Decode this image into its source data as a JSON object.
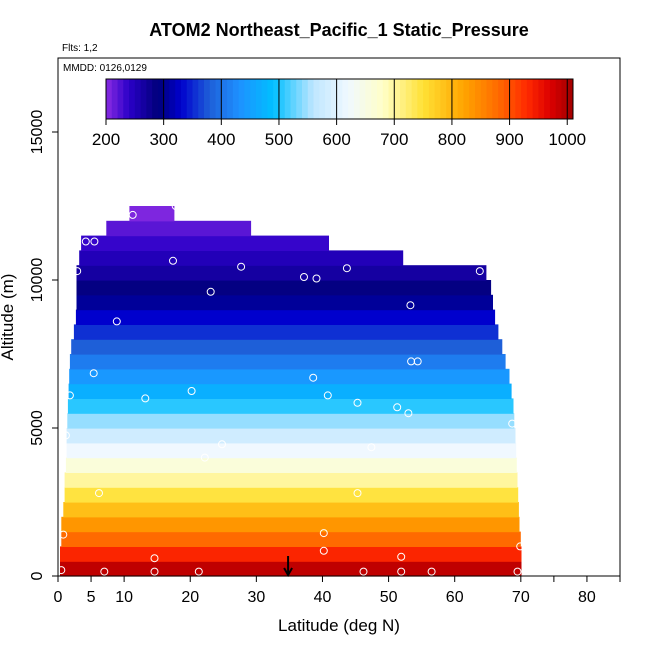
{
  "chart_data": {
    "type": "heatmap",
    "title": "ATOM2 Northeast_Pacific_1 Static_Pressure",
    "subtitle_flights": "Flts: 1,2",
    "subtitle_dates": "MMDD: 0126,0129",
    "xlabel": "Latitude (deg N)",
    "ylabel": "Altitude (m)",
    "xlim": [
      0,
      85
    ],
    "ylim": [
      0,
      17500
    ],
    "x_ticks": [
      0,
      5,
      10,
      20,
      30,
      40,
      50,
      60,
      70,
      80
    ],
    "x_ticks_unlabeled": [
      75,
      85
    ],
    "y_ticks": [
      0,
      5000,
      10000,
      15000
    ],
    "colorbar": {
      "min": 200,
      "max": 1010,
      "ticks": [
        200,
        300,
        400,
        500,
        600,
        700,
        800,
        900,
        1000
      ],
      "color_stops": [
        [
          200,
          "#8a2be2"
        ],
        [
          240,
          "#2a00c8"
        ],
        [
          290,
          "#00007a"
        ],
        [
          330,
          "#0000cd"
        ],
        [
          380,
          "#1e5fd8"
        ],
        [
          430,
          "#1e90ff"
        ],
        [
          490,
          "#00bfff"
        ],
        [
          560,
          "#bfe6ff"
        ],
        [
          620,
          "#f0f8ff"
        ],
        [
          680,
          "#ffffc8"
        ],
        [
          750,
          "#ffe135"
        ],
        [
          820,
          "#ffa500"
        ],
        [
          880,
          "#ff6a00"
        ],
        [
          930,
          "#ff2a00"
        ],
        [
          970,
          "#dd0000"
        ],
        [
          1010,
          "#a00000"
        ]
      ]
    },
    "altitude_bands": [
      {
        "alt": 250,
        "lat_min": 0.3,
        "lat_max": 70.1,
        "pressure": 990
      },
      {
        "alt": 750,
        "lat_min": 0.3,
        "lat_max": 70.1,
        "pressure": 935
      },
      {
        "alt": 1250,
        "lat_min": 0.5,
        "lat_max": 70.0,
        "pressure": 880
      },
      {
        "alt": 1750,
        "lat_min": 0.5,
        "lat_max": 69.8,
        "pressure": 835
      },
      {
        "alt": 2250,
        "lat_min": 0.8,
        "lat_max": 69.7,
        "pressure": 790
      },
      {
        "alt": 2750,
        "lat_min": 1.0,
        "lat_max": 69.6,
        "pressure": 745
      },
      {
        "alt": 3250,
        "lat_min": 1.0,
        "lat_max": 69.5,
        "pressure": 700
      },
      {
        "alt": 3750,
        "lat_min": 1.2,
        "lat_max": 69.4,
        "pressure": 660
      },
      {
        "alt": 4250,
        "lat_min": 1.3,
        "lat_max": 69.3,
        "pressure": 620
      },
      {
        "alt": 4750,
        "lat_min": 1.3,
        "lat_max": 69.2,
        "pressure": 580
      },
      {
        "alt": 5250,
        "lat_min": 1.4,
        "lat_max": 69.0,
        "pressure": 545
      },
      {
        "alt": 5750,
        "lat_min": 1.5,
        "lat_max": 68.9,
        "pressure": 505
      },
      {
        "alt": 6250,
        "lat_min": 1.6,
        "lat_max": 68.6,
        "pressure": 470
      },
      {
        "alt": 6750,
        "lat_min": 1.7,
        "lat_max": 68.3,
        "pressure": 440
      },
      {
        "alt": 7250,
        "lat_min": 1.8,
        "lat_max": 67.7,
        "pressure": 410
      },
      {
        "alt": 7750,
        "lat_min": 2.0,
        "lat_max": 67.2,
        "pressure": 380
      },
      {
        "alt": 8250,
        "lat_min": 2.4,
        "lat_max": 66.6,
        "pressure": 355
      },
      {
        "alt": 8750,
        "lat_min": 2.7,
        "lat_max": 66.1,
        "pressure": 330
      },
      {
        "alt": 9250,
        "lat_min": 2.8,
        "lat_max": 65.8,
        "pressure": 305
      },
      {
        "alt": 9750,
        "lat_min": 2.8,
        "lat_max": 65.5,
        "pressure": 285
      },
      {
        "alt": 10250,
        "lat_min": 2.8,
        "lat_max": 64.8,
        "pressure": 265
      },
      {
        "alt": 10750,
        "lat_min": 3.2,
        "lat_max": 52.2,
        "pressure": 250
      },
      {
        "alt": 11250,
        "lat_min": 3.5,
        "lat_max": 41.0,
        "pressure": 235
      },
      {
        "alt": 11750,
        "lat_min": 7.3,
        "lat_max": 29.2,
        "pressure": 220
      },
      {
        "alt": 12250,
        "lat_min": 10.8,
        "lat_max": 17.6,
        "pressure": 205
      }
    ],
    "flight_points": [
      {
        "lat": 0.5,
        "alt": 200
      },
      {
        "lat": 7.0,
        "alt": 150
      },
      {
        "lat": 14.6,
        "alt": 150
      },
      {
        "lat": 21.3,
        "alt": 150
      },
      {
        "lat": 46.2,
        "alt": 150
      },
      {
        "lat": 51.9,
        "alt": 150
      },
      {
        "lat": 56.5,
        "alt": 150
      },
      {
        "lat": 69.5,
        "alt": 150
      },
      {
        "lat": 14.6,
        "alt": 600
      },
      {
        "lat": 40.2,
        "alt": 850
      },
      {
        "lat": 51.9,
        "alt": 650
      },
      {
        "lat": 69.9,
        "alt": 1000
      },
      {
        "lat": 0.8,
        "alt": 1400
      },
      {
        "lat": 40.2,
        "alt": 1450
      },
      {
        "lat": 6.2,
        "alt": 2800
      },
      {
        "lat": 45.3,
        "alt": 2800
      },
      {
        "lat": 22.2,
        "alt": 4000
      },
      {
        "lat": 24.8,
        "alt": 4450
      },
      {
        "lat": 47.4,
        "alt": 4350
      },
      {
        "lat": 1.2,
        "alt": 4750
      },
      {
        "lat": 53.0,
        "alt": 5500
      },
      {
        "lat": 51.3,
        "alt": 5700
      },
      {
        "lat": 68.7,
        "alt": 5150
      },
      {
        "lat": 1.8,
        "alt": 6100
      },
      {
        "lat": 13.2,
        "alt": 6000
      },
      {
        "lat": 20.2,
        "alt": 6250
      },
      {
        "lat": 40.8,
        "alt": 6100
      },
      {
        "lat": 45.3,
        "alt": 5850
      },
      {
        "lat": 5.4,
        "alt": 6850
      },
      {
        "lat": 38.6,
        "alt": 6700
      },
      {
        "lat": 53.4,
        "alt": 7250
      },
      {
        "lat": 54.4,
        "alt": 7250
      },
      {
        "lat": 8.9,
        "alt": 8600
      },
      {
        "lat": 53.3,
        "alt": 9150
      },
      {
        "lat": 23.1,
        "alt": 9600
      },
      {
        "lat": 2.9,
        "alt": 10300
      },
      {
        "lat": 17.4,
        "alt": 10650
      },
      {
        "lat": 27.7,
        "alt": 10450
      },
      {
        "lat": 37.2,
        "alt": 10100
      },
      {
        "lat": 39.1,
        "alt": 10050
      },
      {
        "lat": 43.7,
        "alt": 10400
      },
      {
        "lat": 63.8,
        "alt": 10300
      },
      {
        "lat": 4.2,
        "alt": 11300
      },
      {
        "lat": 5.5,
        "alt": 11300
      },
      {
        "lat": 11.3,
        "alt": 12200
      },
      {
        "lat": 17.8,
        "alt": 12500
      }
    ],
    "marker": {
      "lat": 34.8,
      "alt": 0,
      "symbol": "down-arrow"
    }
  }
}
